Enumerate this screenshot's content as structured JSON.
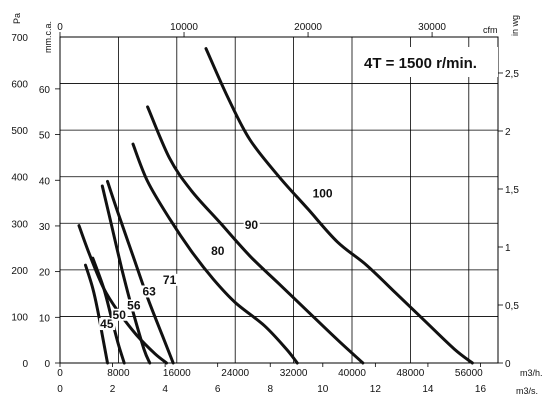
{
  "chart_data": {
    "type": "line",
    "title": "4T = 1500 r/min.",
    "x_axis_bottom": {
      "unit": "m3/h.",
      "range": [
        0,
        60000
      ],
      "ticks": [
        0,
        8000,
        16000,
        24000,
        32000,
        40000,
        48000,
        56000
      ]
    },
    "x_axis_bottom2": {
      "unit": "m3/s.",
      "ticks": [
        0,
        2,
        4,
        6,
        8,
        10,
        12,
        14,
        16
      ]
    },
    "x_axis_top": {
      "unit": "cfm",
      "ticks": [
        0,
        10000,
        20000,
        30000
      ]
    },
    "y_axis_left": {
      "unit": "Pa",
      "range": [
        0,
        700
      ],
      "ticks": [
        0,
        100,
        200,
        300,
        400,
        500,
        600,
        700
      ]
    },
    "y_axis_left2": {
      "unit": "mm.c.a.",
      "ticks": [
        0,
        10,
        20,
        30,
        40,
        50,
        60
      ]
    },
    "y_axis_right": {
      "unit": "in wg",
      "ticks": [
        "0",
        "0,5",
        "1",
        "1,5",
        "2",
        "2,5"
      ]
    },
    "series": [
      {
        "name": "45",
        "points": [
          [
            3500,
            210
          ],
          [
            4500,
            160
          ],
          [
            5200,
            110
          ],
          [
            5800,
            60
          ],
          [
            6500,
            0
          ]
        ]
      },
      {
        "name": "50",
        "points": [
          [
            4500,
            225
          ],
          [
            6000,
            160
          ],
          [
            7000,
            100
          ],
          [
            8000,
            40
          ],
          [
            8800,
            0
          ]
        ]
      },
      {
        "name": "56",
        "points": [
          [
            5800,
            380
          ],
          [
            7000,
            300
          ],
          [
            8500,
            200
          ],
          [
            10000,
            110
          ],
          [
            11500,
            30
          ],
          [
            12300,
            0
          ]
        ]
      },
      {
        "name": "63",
        "points": [
          [
            6500,
            390
          ],
          [
            8000,
            320
          ],
          [
            10000,
            230
          ],
          [
            12000,
            140
          ],
          [
            14000,
            60
          ],
          [
            15500,
            0
          ]
        ]
      },
      {
        "name": "71",
        "points": [
          [
            2600,
            295
          ],
          [
            4000,
            235
          ],
          [
            6000,
            160
          ],
          [
            8000,
            110
          ],
          [
            10500,
            60
          ],
          [
            13000,
            20
          ],
          [
            14600,
            0
          ]
        ]
      },
      {
        "name": "80",
        "points": [
          [
            10000,
            470
          ],
          [
            12000,
            390
          ],
          [
            15000,
            310
          ],
          [
            18000,
            240
          ],
          [
            21000,
            180
          ],
          [
            24000,
            130
          ],
          [
            28000,
            80
          ],
          [
            31000,
            30
          ],
          [
            32500,
            0
          ]
        ]
      },
      {
        "name": "90",
        "points": [
          [
            12000,
            550
          ],
          [
            15000,
            440
          ],
          [
            18000,
            370
          ],
          [
            22000,
            300
          ],
          [
            26000,
            230
          ],
          [
            30000,
            170
          ],
          [
            34000,
            110
          ],
          [
            38000,
            50
          ],
          [
            41500,
            0
          ]
        ]
      },
      {
        "name": "100",
        "points": [
          [
            20000,
            675
          ],
          [
            23000,
            570
          ],
          [
            26000,
            480
          ],
          [
            30000,
            400
          ],
          [
            34000,
            330
          ],
          [
            38000,
            260
          ],
          [
            42000,
            210
          ],
          [
            46000,
            150
          ],
          [
            50000,
            90
          ],
          [
            54000,
            30
          ],
          [
            56500,
            0
          ]
        ]
      }
    ],
    "curve_labels": [
      {
        "name": "45",
        "x": 5500,
        "y": 75
      },
      {
        "name": "50",
        "x": 7200,
        "y": 95
      },
      {
        "name": "56",
        "x": 9200,
        "y": 115
      },
      {
        "name": "63",
        "x": 11300,
        "y": 145
      },
      {
        "name": "71",
        "x": 14100,
        "y": 170
      },
      {
        "name": "80",
        "x": 20700,
        "y": 232
      },
      {
        "name": "90",
        "x": 25300,
        "y": 288
      },
      {
        "name": "100",
        "x": 34600,
        "y": 355
      }
    ],
    "grid": true
  }
}
